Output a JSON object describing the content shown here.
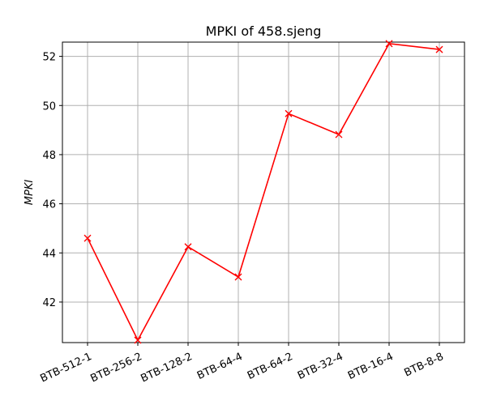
{
  "chart_data": {
    "type": "line",
    "title": "MPKI of 458.sjeng",
    "xlabel": "",
    "ylabel": "MPKI",
    "categories": [
      "BTB-512-1",
      "BTB-256-2",
      "BTB-128-2",
      "BTB-64-4",
      "BTB-64-2",
      "BTB-32-4",
      "BTB-16-4",
      "BTB-8-8"
    ],
    "series": [
      {
        "values": [
          44.6,
          40.45,
          44.25,
          43.02,
          49.67,
          48.82,
          52.52,
          52.28
        ],
        "color": "#ff0000",
        "marker": "x"
      }
    ],
    "ylim": [
      40.35,
      52.58
    ],
    "yticks": [
      42,
      44,
      46,
      48,
      50,
      52
    ],
    "grid": true,
    "xtick_rotation": -25
  }
}
